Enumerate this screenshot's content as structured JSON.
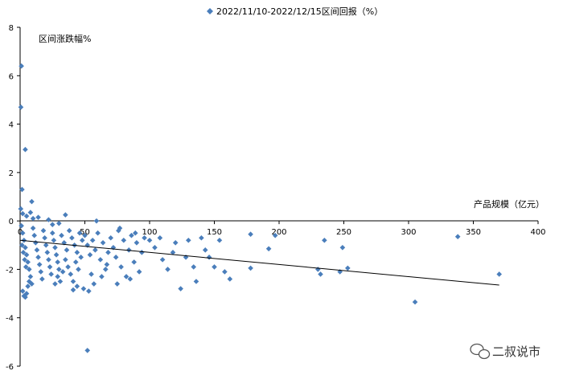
{
  "chart_data": {
    "type": "scatter",
    "legend": "2022/11/10-2022/12/15区间回报（%）",
    "legend_position": "top-center",
    "xlabel": "产品规模（亿元）",
    "ylabel": "区间涨跌幅%",
    "xlim": [
      0,
      400
    ],
    "ylim": [
      -6,
      8
    ],
    "x_ticks": [
      0,
      50,
      100,
      150,
      200,
      250,
      300,
      350,
      400
    ],
    "y_ticks": [
      -6,
      -4,
      -2,
      0,
      2,
      4,
      6,
      8
    ],
    "grid": false,
    "marker_color": "#4a7ebb",
    "trendline": {
      "from": [
        0,
        -0.8
      ],
      "to": [
        370,
        -2.65
      ],
      "color": "#000000"
    },
    "series": [
      {
        "values": [
          [
            1,
            6.4
          ],
          [
            0.6,
            4.7
          ],
          [
            4,
            2.95
          ],
          [
            1.5,
            1.3
          ],
          [
            9,
            0.8
          ],
          [
            0.5,
            0.5
          ],
          [
            2,
            0.3
          ],
          [
            5,
            0.2
          ],
          [
            8,
            0.35
          ],
          [
            14,
            0.15
          ],
          [
            22,
            0.05
          ],
          [
            10,
            0.1
          ],
          [
            1,
            -0.2
          ],
          [
            2,
            -0.5
          ],
          [
            3,
            -0.8
          ],
          [
            4,
            -1.1
          ],
          [
            5,
            -1.4
          ],
          [
            6,
            -1.7
          ],
          [
            7,
            -2.0
          ],
          [
            8,
            -2.3
          ],
          [
            9,
            -2.6
          ],
          [
            10,
            -0.3
          ],
          [
            11,
            -0.6
          ],
          [
            12,
            -0.9
          ],
          [
            13,
            -1.2
          ],
          [
            14,
            -1.5
          ],
          [
            15,
            -1.8
          ],
          [
            16,
            -2.1
          ],
          [
            17,
            -2.4
          ],
          [
            18,
            -0.4
          ],
          [
            19,
            -0.7
          ],
          [
            20,
            -1.0
          ],
          [
            21,
            -1.3
          ],
          [
            22,
            -1.6
          ],
          [
            23,
            -1.9
          ],
          [
            24,
            -2.2
          ],
          [
            25,
            -0.5
          ],
          [
            26,
            -0.8
          ],
          [
            27,
            -1.1
          ],
          [
            28,
            -1.4
          ],
          [
            29,
            -1.7
          ],
          [
            30,
            -2.0
          ],
          [
            2,
            -2.9
          ],
          [
            3,
            -3.1
          ],
          [
            4,
            -3.15
          ],
          [
            5,
            -3.0
          ],
          [
            6,
            -2.7
          ],
          [
            7,
            -2.5
          ],
          [
            1.5,
            -1.0
          ],
          [
            2.5,
            -1.3
          ],
          [
            3.5,
            -1.6
          ],
          [
            4.5,
            -1.9
          ],
          [
            32,
            -0.6
          ],
          [
            34,
            -0.9
          ],
          [
            36,
            -1.2
          ],
          [
            38,
            -0.4
          ],
          [
            40,
            -0.7
          ],
          [
            42,
            -1.0
          ],
          [
            44,
            -1.3
          ],
          [
            46,
            -0.5
          ],
          [
            48,
            -0.8
          ],
          [
            35,
            -1.6
          ],
          [
            37,
            -1.9
          ],
          [
            39,
            -2.2
          ],
          [
            41,
            -2.5
          ],
          [
            33,
            -2.1
          ],
          [
            31,
            -2.5
          ],
          [
            29,
            -2.3
          ],
          [
            27,
            -2.6
          ],
          [
            43,
            -1.7
          ],
          [
            45,
            -2.0
          ],
          [
            47,
            -1.5
          ],
          [
            50,
            -0.6
          ],
          [
            52,
            -1.0
          ],
          [
            54,
            -1.4
          ],
          [
            56,
            -0.8
          ],
          [
            58,
            -1.2
          ],
          [
            60,
            -0.5
          ],
          [
            62,
            -1.6
          ],
          [
            64,
            -0.9
          ],
          [
            66,
            -2.0
          ],
          [
            68,
            -1.3
          ],
          [
            55,
            -2.2
          ],
          [
            57,
            -2.6
          ],
          [
            49,
            -2.8
          ],
          [
            44,
            -2.7
          ],
          [
            53,
            -2.9
          ],
          [
            41,
            -2.85
          ],
          [
            59,
            0.0
          ],
          [
            35,
            0.25
          ],
          [
            30,
            -0.1
          ],
          [
            25,
            -0.15
          ],
          [
            70,
            -0.7
          ],
          [
            72,
            -1.1
          ],
          [
            74,
            -1.5
          ],
          [
            76,
            -0.4
          ],
          [
            78,
            -1.9
          ],
          [
            80,
            -0.8
          ],
          [
            82,
            -2.3
          ],
          [
            84,
            -1.2
          ],
          [
            86,
            -0.6
          ],
          [
            88,
            -1.7
          ],
          [
            90,
            -0.9
          ],
          [
            92,
            -2.1
          ],
          [
            94,
            -1.3
          ],
          [
            96,
            -0.7
          ],
          [
            75,
            -2.6
          ],
          [
            85,
            -2.4
          ],
          [
            77,
            -0.3
          ],
          [
            89,
            -0.5
          ],
          [
            63,
            -2.3
          ],
          [
            67,
            -1.8
          ],
          [
            100,
            -0.8
          ],
          [
            104,
            -1.1
          ],
          [
            108,
            -0.7
          ],
          [
            110,
            -1.6
          ],
          [
            114,
            -2.0
          ],
          [
            118,
            -1.3
          ],
          [
            120,
            -0.9
          ],
          [
            124,
            -2.8
          ],
          [
            128,
            -1.5
          ],
          [
            130,
            -0.8
          ],
          [
            134,
            -1.9
          ],
          [
            136,
            -2.5
          ],
          [
            140,
            -0.7
          ],
          [
            143,
            -1.2
          ],
          [
            146,
            -1.5
          ],
          [
            150,
            -1.9
          ],
          [
            154,
            -0.8
          ],
          [
            158,
            -2.1
          ],
          [
            162,
            -2.4
          ],
          [
            178,
            -0.55
          ],
          [
            178,
            -1.95
          ],
          [
            192,
            -1.15
          ],
          [
            197,
            -0.6
          ],
          [
            230,
            -2.0
          ],
          [
            232,
            -2.2
          ],
          [
            235,
            -0.8
          ],
          [
            247,
            -2.1
          ],
          [
            249,
            -1.1
          ],
          [
            253,
            -1.95
          ],
          [
            305,
            -3.35
          ],
          [
            338,
            -0.65
          ],
          [
            370,
            -2.2
          ],
          [
            52,
            -5.35
          ]
        ]
      }
    ]
  },
  "watermark": {
    "icon": "wechat-icon",
    "text": "二叔说市"
  }
}
